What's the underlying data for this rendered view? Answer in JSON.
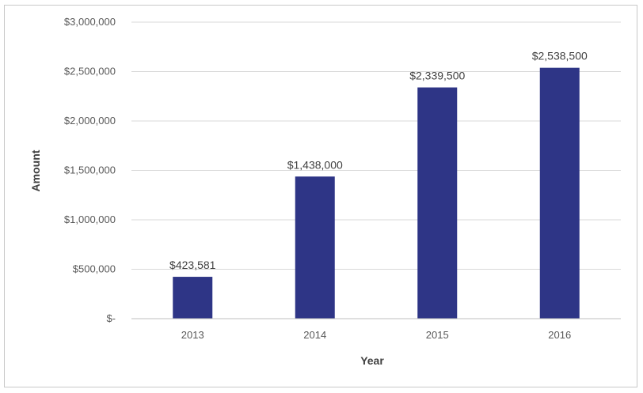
{
  "chart_data": {
    "type": "bar",
    "title": "",
    "xlabel": "Year",
    "ylabel": "Amount",
    "categories": [
      "2013",
      "2014",
      "2015",
      "2016"
    ],
    "values": [
      423581,
      1438000,
      2339500,
      2538500
    ],
    "data_labels": [
      "$423,581",
      "$1,438,000",
      "$2,339,500",
      "$2,538,500"
    ],
    "ylim": [
      0,
      3000000
    ],
    "yticks": [
      0,
      500000,
      1000000,
      1500000,
      2000000,
      2500000,
      3000000
    ],
    "ytick_labels": [
      "$-",
      "$500,000",
      "$1,000,000",
      "$1,500,000",
      "$2,000,000",
      "$2,500,000",
      "$3,000,000"
    ],
    "grid": true,
    "legend": "none",
    "colors": {
      "bar": "#2e3586",
      "grid": "#d9d9d9",
      "axis": "#bfbfbf"
    }
  }
}
